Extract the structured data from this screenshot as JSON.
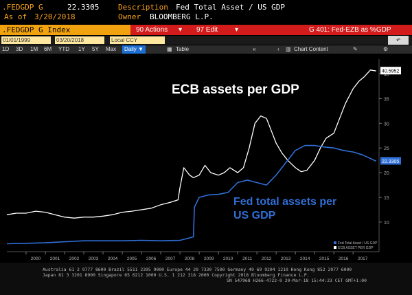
{
  "header": {
    "ticker": ".FEDGDP G",
    "value": "22.3305",
    "desc_label": "Description",
    "desc_value": "Fed Total Asset / US GDP",
    "asof_label": "As of",
    "asof_value": "3/20/2018",
    "owner_label": "Owner",
    "owner_value": "BLOOMBERG L.P."
  },
  "toolbar": {
    "index_label": ".FEDGDP G Index",
    "actions_label": "90 Actions",
    "edit_label": "97 Edit",
    "right_label": "G 401: Fed-EZB as %GDP"
  },
  "controls": {
    "start_date": "01/01/1999",
    "end_date": "03/20/2018",
    "currency": "Local CCY",
    "periods": [
      "1D",
      "3D",
      "1M",
      "6M",
      "YTD",
      "1Y",
      "5Y",
      "Max"
    ],
    "frequency": "Daily",
    "table_label": "Table",
    "chart_content_label": "Chart Content"
  },
  "chart_data": {
    "type": "line",
    "annotations": [
      "ECB assets per GDP",
      "Fed total assets per US GDP"
    ],
    "x_ticks": [
      "2000",
      "2001",
      "2002",
      "2003",
      "2004",
      "2005",
      "2006",
      "2007",
      "2008",
      "2009",
      "2010",
      "2011",
      "2012",
      "2013",
      "2014",
      "2015",
      "2016",
      "2017"
    ],
    "y_ticks": [
      "10",
      "15",
      "20",
      "25",
      "30",
      "35",
      "40"
    ],
    "ylim": [
      4,
      43
    ],
    "last_value_labels": [
      "40.5952",
      "22.3305"
    ],
    "legend": [
      "Fed Total Asset / US GDP",
      "ECB ASSET PER GDP"
    ],
    "series": [
      {
        "name": "ECB ASSET PER GDP",
        "color": "#ffffff",
        "x": [
          1999.0,
          1999.5,
          2000.0,
          2000.5,
          2001.0,
          2001.5,
          2002.0,
          2002.5,
          2003.0,
          2003.5,
          2004.0,
          2004.5,
          2005.0,
          2005.5,
          2006.0,
          2006.5,
          2007.0,
          2007.5,
          2007.9,
          2008.0,
          2008.2,
          2008.5,
          2008.7,
          2009.0,
          2009.3,
          2009.6,
          2010.0,
          2010.3,
          2010.6,
          2011.0,
          2011.3,
          2011.6,
          2011.9,
          2012.2,
          2012.5,
          2012.8,
          2013.0,
          2013.3,
          2013.6,
          2014.0,
          2014.3,
          2014.6,
          2015.0,
          2015.3,
          2015.6,
          2016.0,
          2016.3,
          2016.6,
          2017.0,
          2017.3,
          2017.6,
          2017.9,
          2018.2
        ],
        "y": [
          11.5,
          11.8,
          11.8,
          12.2,
          12.0,
          11.5,
          11.0,
          10.8,
          11.0,
          11.0,
          11.2,
          11.5,
          12.0,
          12.2,
          12.5,
          12.8,
          13.5,
          14.0,
          14.5,
          17.0,
          21.0,
          19.5,
          19.0,
          19.5,
          21.5,
          20.0,
          19.5,
          20.0,
          21.0,
          20.0,
          21.0,
          25.0,
          30.0,
          31.5,
          31.0,
          28.0,
          26.0,
          24.0,
          22.5,
          21.0,
          20.2,
          20.5,
          22.5,
          25.0,
          27.0,
          28.0,
          31.0,
          34.0,
          37.0,
          38.5,
          39.5,
          40.8,
          40.6
        ]
      },
      {
        "name": "Fed Total Asset / US GDP",
        "color": "#2f6fd6",
        "x": [
          1999.0,
          2000.0,
          2001.0,
          2002.0,
          2003.0,
          2004.0,
          2005.0,
          2006.0,
          2007.0,
          2008.0,
          2008.7,
          2008.75,
          2009.0,
          2009.5,
          2010.0,
          2010.5,
          2011.0,
          2011.5,
          2012.0,
          2012.5,
          2013.0,
          2013.5,
          2014.0,
          2014.5,
          2015.0,
          2015.5,
          2016.0,
          2016.5,
          2017.0,
          2017.5,
          2018.2
        ],
        "y": [
          5.6,
          5.7,
          5.8,
          6.0,
          6.2,
          6.2,
          6.2,
          6.3,
          6.2,
          6.3,
          7.0,
          13.0,
          15.0,
          15.5,
          15.6,
          16.0,
          18.0,
          18.5,
          18.0,
          17.5,
          19.5,
          22.0,
          24.5,
          25.5,
          25.5,
          25.2,
          25.0,
          24.5,
          24.2,
          23.6,
          22.33
        ]
      }
    ]
  },
  "footer": {
    "line1": "Australia 61 2 9777 8600 Brazil 5511 2395 9000 Europe 44 20 7330 7500 Germany 49 69 9204 1210 Hong Kong 852 2977 6000",
    "line2": "Japan 81 3 3201 8900        Singapore 65 6212 1000      U.S. 1 212 318 2000      Copyright 2018 Bloomberg Finance L.P.",
    "line3": "SN 547968 H266-4722-0 20-Mar-18 15:44:23 CET GMT+1:00"
  }
}
